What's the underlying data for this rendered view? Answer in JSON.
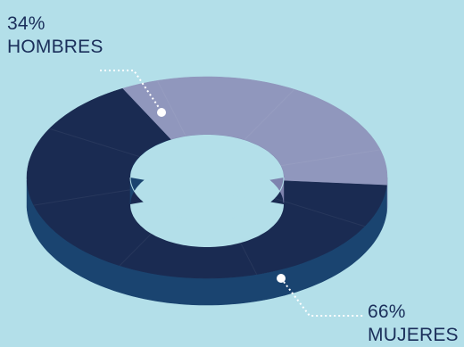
{
  "chart_data": {
    "type": "pie",
    "variant": "donut-3d",
    "slices": [
      {
        "name": "HOMBRES",
        "value": 34,
        "value_label": "34%",
        "color": "#9097bd"
      },
      {
        "name": "MUJERES",
        "value": 66,
        "value_label": "66%",
        "color": "#1a2b52"
      }
    ],
    "side_colors": {
      "HOMBRES": "#7e83ae",
      "MUJERES": "#1a4470"
    },
    "background": "#b3dfe9"
  }
}
